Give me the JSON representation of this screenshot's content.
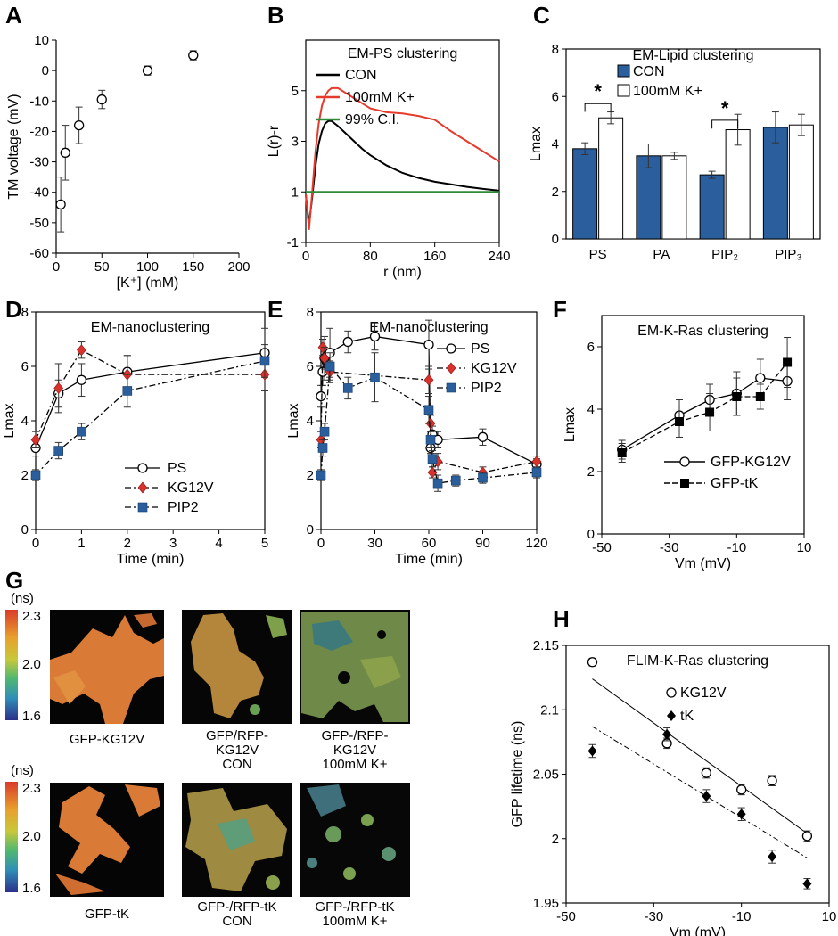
{
  "panel_labels": [
    "A",
    "B",
    "C",
    "D",
    "E",
    "F",
    "G",
    "H"
  ],
  "colors": {
    "blue": "#2a5e9c",
    "red": "#e53b2c",
    "green": "#2e8b3a",
    "black": "#000000",
    "diamond_red": "#d9312b"
  },
  "chart_data": [
    {
      "id": "A",
      "type": "scatter",
      "xlabel": "[K⁺] (mM)",
      "ylabel": "TM voltage (mV)",
      "xlim": [
        0,
        200
      ],
      "ylim": [
        -60,
        10
      ],
      "xticks": [
        0,
        50,
        100,
        150,
        200
      ],
      "yticks": [
        10,
        0,
        -10,
        -20,
        -30,
        -40,
        -50,
        -60
      ],
      "series": [
        {
          "name": "TM voltage",
          "marker": "open-circle",
          "x": [
            5,
            10,
            25,
            50,
            100,
            150
          ],
          "y": [
            -44,
            -27,
            -18,
            -9.5,
            0,
            5
          ],
          "err": [
            9,
            9,
            6,
            3,
            1.5,
            1.5
          ]
        }
      ]
    },
    {
      "id": "B",
      "type": "line",
      "title": "EM-PS clustering",
      "xlabel": "r (nm)",
      "ylabel": "L(r)-r",
      "xlim": [
        0,
        240
      ],
      "ylim": [
        -1,
        7
      ],
      "xticks": [
        0,
        80,
        160,
        240
      ],
      "yticks": [
        -1,
        1,
        3,
        5
      ],
      "series": [
        {
          "name": "CON",
          "color": "#000000",
          "x": [
            0,
            4,
            8,
            12,
            16,
            20,
            24,
            28,
            32,
            40,
            50,
            60,
            70,
            80,
            100,
            120,
            140,
            160,
            180,
            200,
            220,
            240
          ],
          "y": [
            0.9,
            -0.3,
            0.8,
            2.0,
            2.9,
            3.4,
            3.7,
            3.8,
            3.8,
            3.6,
            3.3,
            3.0,
            2.7,
            2.45,
            2.05,
            1.75,
            1.55,
            1.4,
            1.3,
            1.2,
            1.12,
            1.05
          ]
        },
        {
          "name": "100mM K+",
          "color": "#e53b2c",
          "x": [
            0,
            4,
            8,
            12,
            16,
            20,
            24,
            28,
            32,
            40,
            50,
            60,
            70,
            80,
            100,
            120,
            140,
            160,
            180,
            200,
            220,
            240
          ],
          "y": [
            0.9,
            -0.5,
            1.0,
            2.6,
            3.7,
            4.4,
            4.8,
            5.0,
            5.1,
            5.1,
            4.9,
            4.7,
            4.5,
            4.3,
            4.15,
            4.1,
            4.0,
            3.85,
            3.4,
            3.0,
            2.6,
            2.2
          ]
        },
        {
          "name": "99% C.I.",
          "color": "#2e8b3a",
          "x": [
            0,
            240
          ],
          "y": [
            1.0,
            1.0
          ]
        }
      ]
    },
    {
      "id": "C",
      "type": "bar",
      "title": "EM-Lipid clustering",
      "ylabel": "Lmax",
      "ylim": [
        0,
        8
      ],
      "yticks": [
        0,
        2,
        4,
        6,
        8
      ],
      "categories": [
        "PS",
        "PA",
        "PIP₂",
        "PIP₃"
      ],
      "series": [
        {
          "name": "CON",
          "fill": "#2a5e9c",
          "values": [
            3.8,
            3.5,
            2.7,
            4.7
          ],
          "err": [
            0.25,
            0.5,
            0.15,
            0.65
          ]
        },
        {
          "name": "100mM K+",
          "fill": "#ffffff",
          "values": [
            5.1,
            3.5,
            4.6,
            4.8
          ],
          "err": [
            0.25,
            0.15,
            0.65,
            0.45
          ]
        }
      ],
      "significance": [
        "*",
        "*"
      ]
    },
    {
      "id": "D",
      "type": "line",
      "title": "EM-nanoclustering",
      "xlabel": "Time (min)",
      "ylabel": "Lmax",
      "xlim": [
        0,
        5
      ],
      "ylim": [
        0,
        8
      ],
      "xticks": [
        0,
        1,
        2,
        3,
        4,
        5
      ],
      "yticks": [
        0,
        2,
        4,
        6,
        8
      ],
      "series": [
        {
          "name": "PS",
          "marker": "open-circle",
          "dash": "solid",
          "x": [
            0,
            0.5,
            1,
            2,
            5
          ],
          "y": [
            3.0,
            5.0,
            5.5,
            5.8,
            6.5
          ],
          "err": [
            0.3,
            0.5,
            0.6,
            0.6,
            0.9
          ]
        },
        {
          "name": "KG12V",
          "marker": "red-diamond",
          "dash": "dashdot",
          "x": [
            0,
            0.5,
            1,
            2,
            5
          ],
          "y": [
            3.3,
            5.2,
            6.6,
            5.7,
            5.7
          ],
          "err": [
            0.3,
            0.9,
            0.3,
            0.7,
            0.6
          ]
        },
        {
          "name": "PIP2",
          "marker": "blue-square",
          "dash": "dashdot",
          "x": [
            0,
            0.5,
            1,
            2,
            5
          ],
          "y": [
            2.0,
            2.9,
            3.6,
            5.1,
            6.2
          ],
          "err": [
            0.2,
            0.3,
            0.3,
            0.6,
            0.6
          ]
        }
      ]
    },
    {
      "id": "E",
      "type": "line",
      "title": "EM-nanoclustering",
      "xlabel": "Time (min)",
      "ylabel": "Lmax",
      "xlim": [
        0,
        120
      ],
      "ylim": [
        0,
        8
      ],
      "xticks": [
        0,
        30,
        60,
        90,
        120
      ],
      "yticks": [
        0,
        2,
        4,
        6,
        8
      ],
      "series": [
        {
          "name": "PS",
          "marker": "open-circle",
          "dash": "solid",
          "x": [
            0,
            1,
            2,
            5,
            15,
            30,
            60,
            61,
            62,
            65,
            90,
            120
          ],
          "y": [
            4.9,
            5.8,
            6.3,
            6.5,
            6.9,
            7.1,
            6.8,
            3.0,
            3.5,
            3.3,
            3.4,
            2.4
          ],
          "err": [
            0.4,
            0.5,
            0.8,
            0.9,
            0.4,
            0.5,
            0.9,
            0.2,
            0.3,
            0.3,
            0.3,
            0.2
          ]
        },
        {
          "name": "KG12V",
          "marker": "red-diamond",
          "dash": "dashdot",
          "x": [
            0,
            1,
            2,
            5,
            60,
            61,
            62,
            65,
            90,
            120
          ],
          "y": [
            3.3,
            6.7,
            6.3,
            5.8,
            5.5,
            3.9,
            2.1,
            2.5,
            2.1,
            2.5
          ],
          "err": [
            0.3,
            0.3,
            0.4,
            0.4,
            0.5,
            0.3,
            0.2,
            0.3,
            0.2,
            0.2
          ]
        },
        {
          "name": "PIP2",
          "marker": "blue-square",
          "dash": "dashdot",
          "x": [
            0,
            1,
            2,
            5,
            15,
            30,
            60,
            61,
            62,
            65,
            75,
            90,
            120
          ],
          "y": [
            2.0,
            3.0,
            3.6,
            6.0,
            5.2,
            5.6,
            4.4,
            3.3,
            2.6,
            1.7,
            1.8,
            1.9,
            2.1
          ],
          "err": [
            0.2,
            0.3,
            0.3,
            0.5,
            0.4,
            0.9,
            0.5,
            0.3,
            0.3,
            0.3,
            0.2,
            0.2,
            0.2
          ]
        }
      ]
    },
    {
      "id": "F",
      "type": "line",
      "title": "EM-K-Ras clustering",
      "xlabel": "Vm (mV)",
      "ylabel": "Lmax",
      "xlim": [
        -50,
        10
      ],
      "ylim": [
        0,
        7
      ],
      "xticks": [
        -50,
        -30,
        -10,
        10
      ],
      "yticks": [
        0,
        2,
        4,
        6
      ],
      "series": [
        {
          "name": "GFP-KG12V",
          "marker": "open-circle",
          "dash": "solid",
          "x": [
            -44,
            -27,
            -18,
            -10,
            -3,
            5
          ],
          "y": [
            2.7,
            3.8,
            4.3,
            4.5,
            5.0,
            4.9
          ],
          "err": [
            0.3,
            0.5,
            0.5,
            0.7,
            0.6,
            0.6
          ]
        },
        {
          "name": "GFP-tK",
          "marker": "black-square",
          "dash": "dashed",
          "x": [
            -44,
            -27,
            -18,
            -10,
            -3,
            5
          ],
          "y": [
            2.6,
            3.6,
            3.9,
            4.4,
            4.4,
            5.5
          ],
          "err": [
            0.3,
            0.5,
            0.6,
            0.6,
            0.4,
            0.8
          ]
        }
      ]
    },
    {
      "id": "H",
      "type": "scatter",
      "title": "FLIM-K-Ras clustering",
      "xlabel": "Vm (mV)",
      "ylabel": "GFP lifetime (ns)",
      "xlim": [
        -50,
        10
      ],
      "ylim": [
        1.95,
        2.15
      ],
      "xticks": [
        -50,
        -30,
        -10,
        10
      ],
      "yticks": [
        1.95,
        2.0,
        2.05,
        2.1,
        2.15
      ],
      "ytick_labels": [
        "1.95",
        "2",
        "2.05",
        "2.1",
        "2.15"
      ],
      "series": [
        {
          "name": "KG12V",
          "marker": "open-circle",
          "fit": [
            -44,
            2.124,
            5,
            2.004
          ],
          "x": [
            -44,
            -27,
            -18,
            -10,
            -3,
            5
          ],
          "y": [
            2.137,
            2.074,
            2.051,
            2.038,
            2.045,
            2.002
          ],
          "err": [
            0.003,
            0.004,
            0.004,
            0.004,
            0.004,
            0.004
          ]
        },
        {
          "name": "tK",
          "marker": "black-diamond",
          "fit": [
            -44,
            2.087,
            5,
            1.985
          ],
          "x": [
            -44,
            -27,
            -18,
            -10,
            -3,
            5
          ],
          "y": [
            2.068,
            2.081,
            2.033,
            2.019,
            1.986,
            1.965
          ],
          "err": [
            0.005,
            0.005,
            0.005,
            0.005,
            0.005,
            0.004
          ]
        }
      ]
    }
  ],
  "flim_panel": {
    "unit_label": "(ns)",
    "scale_labels": [
      "2.3",
      "2.0",
      "1.6"
    ],
    "rows": [
      [
        "GFP-KG12V",
        "GFP/RFP-\nKG12V\nCON",
        "GFP-/RFP-\nKG12V\n100mM K+"
      ],
      [
        "GFP-tK",
        "GFP-/RFP-tK\nCON",
        "GFP-/RFP-tK\n100mM K+"
      ]
    ]
  }
}
